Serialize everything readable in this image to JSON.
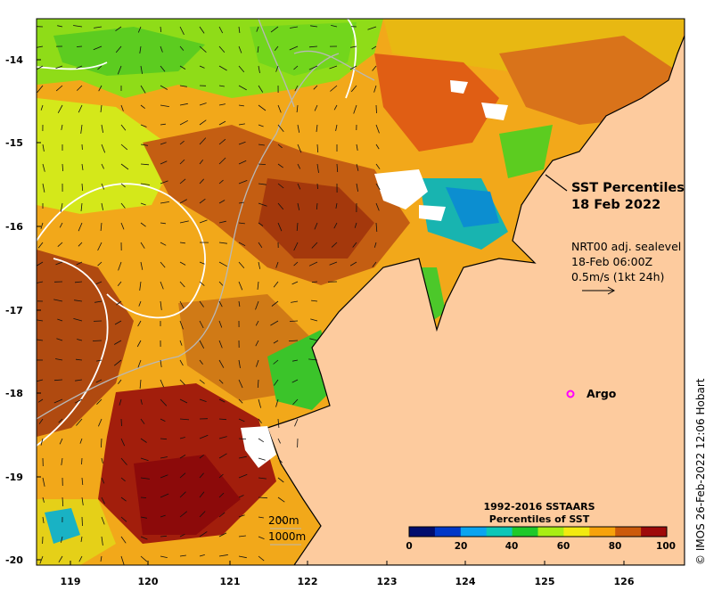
{
  "map": {
    "title_line1": "SST Percentiles",
    "title_line2": "18 Feb 2022",
    "product": "NRT00 adj. sealevel",
    "time": "18-Feb 06:00Z",
    "vector_scale": "0.5m/s (1kt 24h)",
    "argo_label": "Argo",
    "credit": "© IMOS 26-Feb-2022 12:06 Hobart",
    "contour_labels": [
      "200m",
      "1000m"
    ],
    "lat_ticks": [
      "-14",
      "-15",
      "-16",
      "-17",
      "-18",
      "-19",
      "-20"
    ],
    "lon_ticks": [
      "119",
      "120",
      "121",
      "122",
      "123",
      "124",
      "125",
      "126"
    ],
    "argo_color": "#ff00ff",
    "land_color": "#fdcb9e"
  },
  "colorbar": {
    "title_line1": "1992-2016 SSTAARS",
    "title_line2": "Percentiles of SST",
    "ticks": [
      "0",
      "20",
      "40",
      "60",
      "80",
      "100"
    ],
    "colors": [
      "#000d6e",
      "#0038c8",
      "#0ba4f0",
      "#0cc7b8",
      "#1ec92a",
      "#a8ee14",
      "#f2ea10",
      "#f7a20a",
      "#cc5a0a",
      "#9e0a0a"
    ]
  }
}
